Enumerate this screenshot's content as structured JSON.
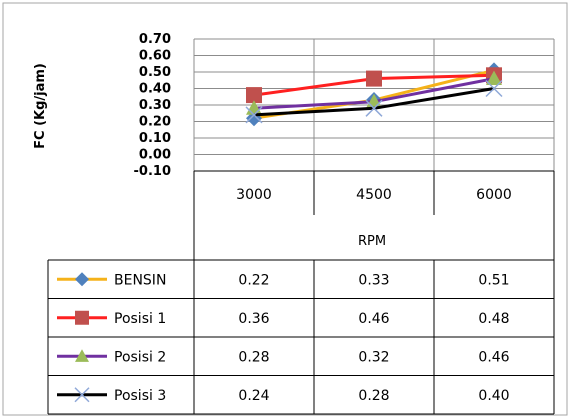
{
  "chart_data": {
    "type": "line",
    "title": "",
    "xlabel": "RPM",
    "ylabel": "FC (Kg/jam)",
    "categories": [
      "3000",
      "4500",
      "6000"
    ],
    "ylim": [
      -0.1,
      0.7
    ],
    "yticks": [
      "0.70",
      "0.60",
      "0.50",
      "0.40",
      "0.30",
      "0.20",
      "0.10",
      "0.00",
      "-0.10"
    ],
    "grid": true,
    "legend": "data-table-left",
    "series": [
      {
        "name": "BENSIN",
        "values": [
          0.22,
          0.33,
          0.51
        ],
        "labels": [
          "0.22",
          "0.33",
          "0.51"
        ],
        "color": "#F5B21A",
        "marker_color": "#4F81BD",
        "marker": "diamond"
      },
      {
        "name": "Posisi 1",
        "values": [
          0.36,
          0.46,
          0.48
        ],
        "labels": [
          "0.36",
          "0.46",
          "0.48"
        ],
        "color": "#FF2020",
        "marker_color": "#C0504D",
        "marker": "square"
      },
      {
        "name": "Posisi 2",
        "values": [
          0.28,
          0.32,
          0.46
        ],
        "labels": [
          "0.28",
          "0.32",
          "0.46"
        ],
        "color": "#7030A0",
        "marker_color": "#9BBB59",
        "marker": "triangle"
      },
      {
        "name": "Posisi 3",
        "values": [
          0.24,
          0.28,
          0.4
        ],
        "labels": [
          "0.24",
          "0.28",
          "0.40"
        ],
        "color": "#000000",
        "marker_color": "#8FA8D8",
        "marker": "x"
      }
    ]
  }
}
